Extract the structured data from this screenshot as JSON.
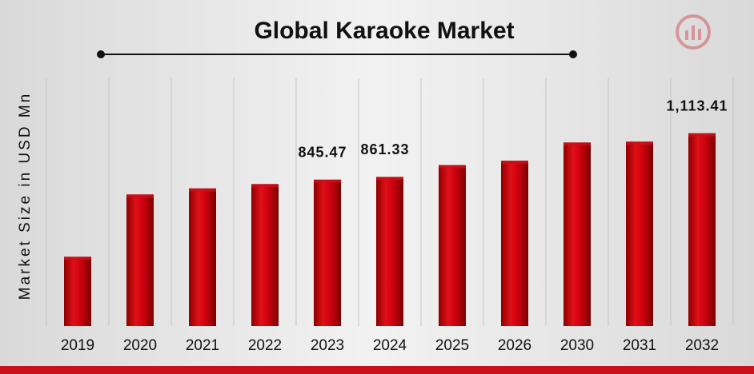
{
  "chart_data": {
    "type": "bar",
    "title": "Global Karaoke Market",
    "y_label": "Market Size in USD Mn",
    "categories": [
      "2019",
      "2020",
      "2021",
      "2022",
      "2023",
      "2024",
      "2025",
      "2026",
      "2030",
      "2031",
      "2032"
    ],
    "values": [
      400,
      760,
      795,
      820,
      845.47,
      861.33,
      930,
      955,
      1060,
      1065,
      1113.41
    ],
    "value_labels": [
      null,
      null,
      null,
      null,
      "845.47",
      "861.33",
      null,
      null,
      null,
      null,
      "1,113.41"
    ],
    "color": "#c8101a",
    "ylim": [
      0,
      1500
    ],
    "grid": true
  }
}
